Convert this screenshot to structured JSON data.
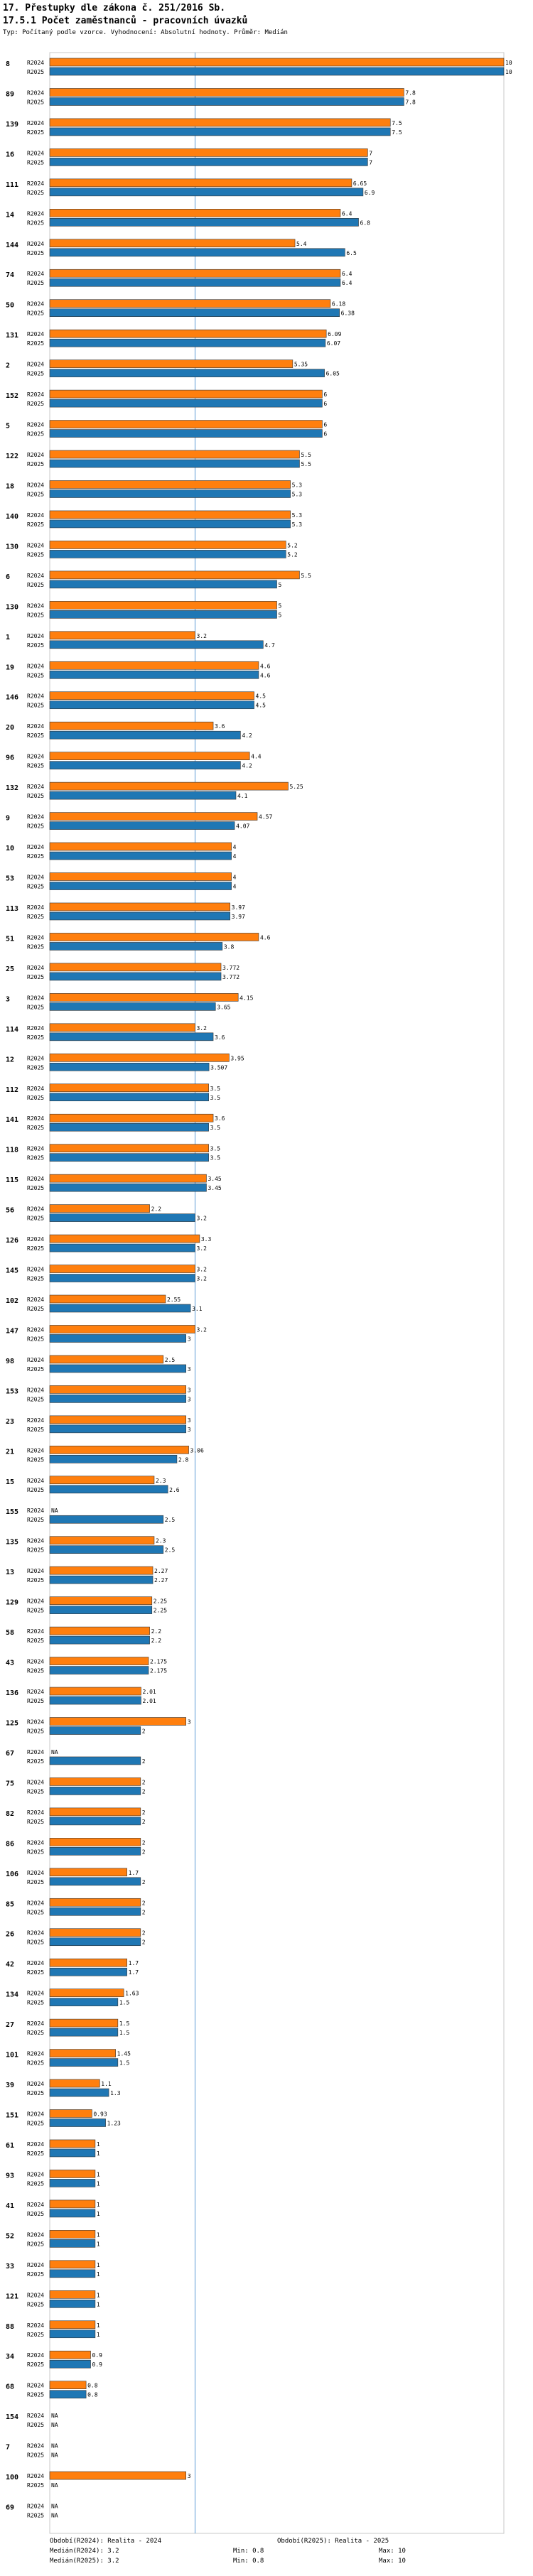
{
  "header": {
    "title": "17. Přestupky dle zákona č. 251/2016 Sb.",
    "subtitle": "17.5.1 Počet zaměstnanců - pracovních úvazků",
    "info": "Typ: Počítaný podle vzorce. Vyhodnocení: Absolutní hodnoty. Průměr: Medián"
  },
  "colors": {
    "r2024": "#ff7f0e",
    "r2025": "#1f77b4",
    "median_line": "#5b9bd5"
  },
  "chart_data": {
    "type": "bar",
    "orientation": "horizontal",
    "xlim": [
      0,
      10
    ],
    "median": 3.2,
    "na_label": "NA",
    "series": [
      {
        "name": "R2024",
        "label": "R2024",
        "color": "#ff7f0e"
      },
      {
        "name": "R2025",
        "label": "R2025",
        "color": "#1f77b4"
      }
    ],
    "groups": [
      {
        "id": "8",
        "v2024": 10,
        "l2024": "10",
        "v2025": 10,
        "l2025": "10"
      },
      {
        "id": "89",
        "v2024": 7.8,
        "l2024": "7.8",
        "v2025": 7.8,
        "l2025": "7.8"
      },
      {
        "id": "139",
        "v2024": 7.5,
        "l2024": "7.5",
        "v2025": 7.5,
        "l2025": "7.5"
      },
      {
        "id": "16",
        "v2024": 7,
        "l2024": "7",
        "v2025": 7,
        "l2025": "7"
      },
      {
        "id": "111",
        "v2024": 6.65,
        "l2024": "6.65",
        "v2025": 6.9,
        "l2025": "6.9"
      },
      {
        "id": "14",
        "v2024": 6.4,
        "l2024": "6.4",
        "v2025": 6.8,
        "l2025": "6.8"
      },
      {
        "id": "144",
        "v2024": 5.4,
        "l2024": "5.4",
        "v2025": 6.5,
        "l2025": "6.5"
      },
      {
        "id": "74",
        "v2024": 6.4,
        "l2024": "6.4",
        "v2025": 6.4,
        "l2025": "6.4"
      },
      {
        "id": "50",
        "v2024": 6.18,
        "l2024": "6.18",
        "v2025": 6.38,
        "l2025": "6.38"
      },
      {
        "id": "131",
        "v2024": 6.09,
        "l2024": "6.09",
        "v2025": 6.07,
        "l2025": "6.07"
      },
      {
        "id": "2",
        "v2024": 5.35,
        "l2024": "5.35",
        "v2025": 6.05,
        "l2025": "6.05"
      },
      {
        "id": "152",
        "v2024": 6,
        "l2024": "6",
        "v2025": 6,
        "l2025": "6"
      },
      {
        "id": "5",
        "v2024": 6,
        "l2024": "6",
        "v2025": 6,
        "l2025": "6"
      },
      {
        "id": "122",
        "v2024": 5.5,
        "l2024": "5.5",
        "v2025": 5.5,
        "l2025": "5.5"
      },
      {
        "id": "18",
        "v2024": 5.3,
        "l2024": "5.3",
        "v2025": 5.3,
        "l2025": "5.3"
      },
      {
        "id": "140",
        "v2024": 5.3,
        "l2024": "5.3",
        "v2025": 5.3,
        "l2025": "5.3"
      },
      {
        "id": "130",
        "v2024": 5.2,
        "l2024": "5.2",
        "v2025": 5.2,
        "l2025": "5.2"
      },
      {
        "id": "6",
        "v2024": 5.5,
        "l2024": "5.5",
        "v2025": 5,
        "l2025": "5"
      },
      {
        "id": "130",
        "v2024": 5,
        "l2024": "5",
        "v2025": 5,
        "l2025": "5"
      },
      {
        "id": "1",
        "v2024": 3.2,
        "l2024": "3.2",
        "v2025": 4.7,
        "l2025": "4.7"
      },
      {
        "id": "19",
        "v2024": 4.6,
        "l2024": "4.6",
        "v2025": 4.6,
        "l2025": "4.6"
      },
      {
        "id": "146",
        "v2024": 4.5,
        "l2024": "4.5",
        "v2025": 4.5,
        "l2025": "4.5"
      },
      {
        "id": "20",
        "v2024": 3.6,
        "l2024": "3.6",
        "v2025": 4.2,
        "l2025": "4.2"
      },
      {
        "id": "96",
        "v2024": 4.4,
        "l2024": "4.4",
        "v2025": 4.2,
        "l2025": "4.2"
      },
      {
        "id": "132",
        "v2024": 5.25,
        "l2024": "5.25",
        "v2025": 4.1,
        "l2025": "4.1"
      },
      {
        "id": "9",
        "v2024": 4.57,
        "l2024": "4.57",
        "v2025": 4.07,
        "l2025": "4.07"
      },
      {
        "id": "10",
        "v2024": 4,
        "l2024": "4",
        "v2025": 4,
        "l2025": "4"
      },
      {
        "id": "53",
        "v2024": 4,
        "l2024": "4",
        "v2025": 4,
        "l2025": "4"
      },
      {
        "id": "113",
        "v2024": 3.97,
        "l2024": "3.97",
        "v2025": 3.97,
        "l2025": "3.97"
      },
      {
        "id": "51",
        "v2024": 4.6,
        "l2024": "4.6",
        "v2025": 3.8,
        "l2025": "3.8"
      },
      {
        "id": "25",
        "v2024": 3.772,
        "l2024": "3.772",
        "v2025": 3.772,
        "l2025": "3.772"
      },
      {
        "id": "3",
        "v2024": 4.15,
        "l2024": "4.15",
        "v2025": 3.65,
        "l2025": "3.65"
      },
      {
        "id": "114",
        "v2024": 3.2,
        "l2024": "3.2",
        "v2025": 3.6,
        "l2025": "3.6"
      },
      {
        "id": "12",
        "v2024": 3.95,
        "l2024": "3.95",
        "v2025": 3.507,
        "l2025": "3.507"
      },
      {
        "id": "112",
        "v2024": 3.5,
        "l2024": "3.5",
        "v2025": 3.5,
        "l2025": "3.5"
      },
      {
        "id": "141",
        "v2024": 3.6,
        "l2024": "3.6",
        "v2025": 3.5,
        "l2025": "3.5"
      },
      {
        "id": "118",
        "v2024": 3.5,
        "l2024": "3.5",
        "v2025": 3.5,
        "l2025": "3.5"
      },
      {
        "id": "115",
        "v2024": 3.45,
        "l2024": "3.45",
        "v2025": 3.45,
        "l2025": "3.45"
      },
      {
        "id": "56",
        "v2024": 2.2,
        "l2024": "2.2",
        "v2025": 3.2,
        "l2025": "3.2"
      },
      {
        "id": "126",
        "v2024": 3.3,
        "l2024": "3.3",
        "v2025": 3.2,
        "l2025": "3.2"
      },
      {
        "id": "145",
        "v2024": 3.2,
        "l2024": "3.2",
        "v2025": 3.2,
        "l2025": "3.2"
      },
      {
        "id": "102",
        "v2024": 2.55,
        "l2024": "2.55",
        "v2025": 3.1,
        "l2025": "3.1"
      },
      {
        "id": "147",
        "v2024": 3.2,
        "l2024": "3.2",
        "v2025": 3,
        "l2025": "3"
      },
      {
        "id": "98",
        "v2024": 2.5,
        "l2024": "2.5",
        "v2025": 3,
        "l2025": "3"
      },
      {
        "id": "153",
        "v2024": 3,
        "l2024": "3",
        "v2025": 3,
        "l2025": "3"
      },
      {
        "id": "23",
        "v2024": 3,
        "l2024": "3",
        "v2025": 3,
        "l2025": "3"
      },
      {
        "id": "21",
        "v2024": 3.06,
        "l2024": "3.06",
        "v2025": 2.8,
        "l2025": "2.8"
      },
      {
        "id": "15",
        "v2024": 2.3,
        "l2024": "2.3",
        "v2025": 2.6,
        "l2025": "2.6"
      },
      {
        "id": "155",
        "v2024": null,
        "l2024": "NA",
        "v2025": 2.5,
        "l2025": "2.5"
      },
      {
        "id": "135",
        "v2024": 2.3,
        "l2024": "2.3",
        "v2025": 2.5,
        "l2025": "2.5"
      },
      {
        "id": "13",
        "v2024": 2.27,
        "l2024": "2.27",
        "v2025": 2.27,
        "l2025": "2.27"
      },
      {
        "id": "129",
        "v2024": 2.25,
        "l2024": "2.25",
        "v2025": 2.25,
        "l2025": "2.25"
      },
      {
        "id": "58",
        "v2024": 2.2,
        "l2024": "2.2",
        "v2025": 2.2,
        "l2025": "2.2"
      },
      {
        "id": "43",
        "v2024": 2.175,
        "l2024": "2.175",
        "v2025": 2.175,
        "l2025": "2.175"
      },
      {
        "id": "136",
        "v2024": 2.01,
        "l2024": "2.01",
        "v2025": 2.01,
        "l2025": "2.01"
      },
      {
        "id": "125",
        "v2024": 3,
        "l2024": "3",
        "v2025": 2,
        "l2025": "2"
      },
      {
        "id": "67",
        "v2024": null,
        "l2024": "NA",
        "v2025": 2,
        "l2025": "2"
      },
      {
        "id": "75",
        "v2024": 2,
        "l2024": "2",
        "v2025": 2,
        "l2025": "2"
      },
      {
        "id": "82",
        "v2024": 2,
        "l2024": "2",
        "v2025": 2,
        "l2025": "2"
      },
      {
        "id": "86",
        "v2024": 2,
        "l2024": "2",
        "v2025": 2,
        "l2025": "2"
      },
      {
        "id": "106",
        "v2024": 1.7,
        "l2024": "1.7",
        "v2025": 2,
        "l2025": "2"
      },
      {
        "id": "85",
        "v2024": 2,
        "l2024": "2",
        "v2025": 2,
        "l2025": "2"
      },
      {
        "id": "26",
        "v2024": 2,
        "l2024": "2",
        "v2025": 2,
        "l2025": "2"
      },
      {
        "id": "42",
        "v2024": 1.7,
        "l2024": "1.7",
        "v2025": 1.7,
        "l2025": "1.7"
      },
      {
        "id": "134",
        "v2024": 1.63,
        "l2024": "1.63",
        "v2025": 1.5,
        "l2025": "1.5"
      },
      {
        "id": "27",
        "v2024": 1.5,
        "l2024": "1.5",
        "v2025": 1.5,
        "l2025": "1.5"
      },
      {
        "id": "101",
        "v2024": 1.45,
        "l2024": "1.45",
        "v2025": 1.5,
        "l2025": "1.5"
      },
      {
        "id": "39",
        "v2024": 1.1,
        "l2024": "1.1",
        "v2025": 1.3,
        "l2025": "1.3"
      },
      {
        "id": "151",
        "v2024": 0.93,
        "l2024": "0.93",
        "v2025": 1.23,
        "l2025": "1.23"
      },
      {
        "id": "61",
        "v2024": 1,
        "l2024": "1",
        "v2025": 1,
        "l2025": "1"
      },
      {
        "id": "93",
        "v2024": 1,
        "l2024": "1",
        "v2025": 1,
        "l2025": "1"
      },
      {
        "id": "41",
        "v2024": 1,
        "l2024": "1",
        "v2025": 1,
        "l2025": "1"
      },
      {
        "id": "52",
        "v2024": 1,
        "l2024": "1",
        "v2025": 1,
        "l2025": "1"
      },
      {
        "id": "33",
        "v2024": 1,
        "l2024": "1",
        "v2025": 1,
        "l2025": "1"
      },
      {
        "id": "121",
        "v2024": 1,
        "l2024": "1",
        "v2025": 1,
        "l2025": "1"
      },
      {
        "id": "88",
        "v2024": 1,
        "l2024": "1",
        "v2025": 1,
        "l2025": "1"
      },
      {
        "id": "34",
        "v2024": 0.9,
        "l2024": "0.9",
        "v2025": 0.9,
        "l2025": "0.9"
      },
      {
        "id": "68",
        "v2024": 0.8,
        "l2024": "0.8",
        "v2025": 0.8,
        "l2025": "0.8"
      },
      {
        "id": "154",
        "v2024": null,
        "l2024": "NA",
        "v2025": null,
        "l2025": "NA"
      },
      {
        "id": "7",
        "v2024": null,
        "l2024": "NA",
        "v2025": null,
        "l2025": "NA"
      },
      {
        "id": "100",
        "v2024": 3,
        "l2024": "3",
        "v2025": null,
        "l2025": "NA"
      },
      {
        "id": "69",
        "v2024": null,
        "l2024": "NA",
        "v2025": null,
        "l2025": "NA"
      }
    ]
  },
  "footer": {
    "period_2024": "Období(R2024): Realita - 2024",
    "period_2025": "Období(R2025): Realita - 2025",
    "median_2024": "Medián(R2024): 3.2",
    "median_2025": "Medián(R2025): 3.2",
    "min_2024": "Min: 0.8",
    "min_2025": "Min: 0.8",
    "max_2024": "Max: 10",
    "max_2025": "Max: 10"
  }
}
